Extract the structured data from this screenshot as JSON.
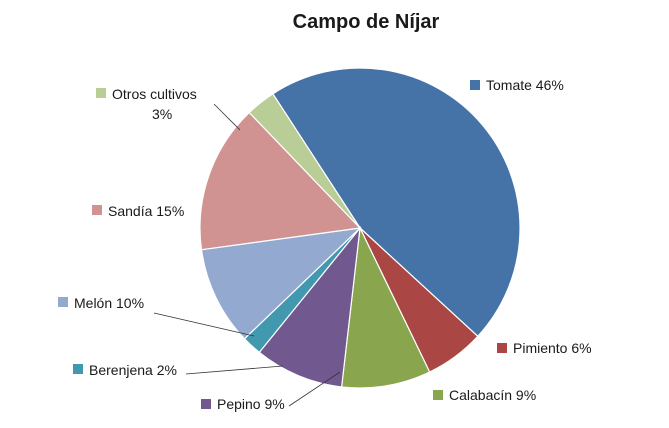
{
  "chart_data": {
    "type": "pie",
    "title": "Campo de Níjar",
    "slices": [
      {
        "label": "Tomate",
        "value": 46,
        "value_text": "46%",
        "color": "#4572A7"
      },
      {
        "label": "Pimiento",
        "value": 6,
        "value_text": "6%",
        "color": "#AA4643"
      },
      {
        "label": "Calabacín",
        "value": 9,
        "value_text": "9%",
        "color": "#89A54E"
      },
      {
        "label": "Pepino",
        "value": 9,
        "value_text": "9%",
        "color": "#71588F"
      },
      {
        "label": "Berenjena",
        "value": 2,
        "value_text": "2%",
        "color": "#4198AF"
      },
      {
        "label": "Melón",
        "value": 10,
        "value_text": "10%",
        "color": "#93A9CF"
      },
      {
        "label": "Sandía",
        "value": 15,
        "value_text": "15%",
        "color": "#D19392"
      },
      {
        "label": "Otros cultivos",
        "value": 3,
        "value_text": "3%",
        "color": "#B9CD96"
      }
    ],
    "data_labels": "outside with legend key and leader lines"
  }
}
